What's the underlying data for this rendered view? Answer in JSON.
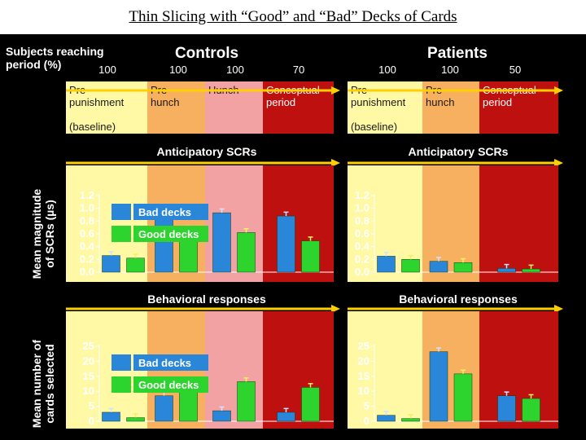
{
  "slide_title": "Thin Slicing with “Good” and “Bad” Decks of Cards",
  "figure": {
    "subjects_label_line1": "Subjects reaching",
    "subjects_label_line2": "period (%)",
    "groups": [
      {
        "name": "Controls",
        "percentages": [
          "100",
          "100",
          "100",
          "70"
        ],
        "periods": [
          {
            "lines": [
              "Pre-",
              "punishment",
              "",
              "(baseline)"
            ],
            "color": "#fff9a6"
          },
          {
            "lines": [
              "Pre-",
              "hunch"
            ],
            "color": "#f7b060"
          },
          {
            "lines": [
              "Hunch"
            ],
            "color": "#f2a2a2"
          },
          {
            "lines": [
              "Conceptual",
              "period"
            ],
            "color": "#bf1010"
          }
        ]
      },
      {
        "name": "Patients",
        "percentages": [
          "100",
          "100",
          "50"
        ],
        "periods": [
          {
            "lines": [
              "Pre-",
              "punishment",
              "",
              "(baseline)"
            ],
            "color": "#fff9a6"
          },
          {
            "lines": [
              "Pre-",
              "hunch"
            ],
            "color": "#f7b060"
          },
          {
            "lines": [
              "Conceptual",
              "period"
            ],
            "color": "#bf1010"
          }
        ]
      }
    ],
    "colors": {
      "bad": "#2a86d8",
      "good": "#2ed42e",
      "text": "#ffffff",
      "arrow": "#ffd000"
    }
  },
  "chart_data": [
    {
      "type": "bar",
      "title": "Anticipatory SCRs",
      "group": "Controls",
      "ylabel": "Mean magnitude of SCRs (µs)",
      "ylabel_lines": [
        "Mean magnitude",
        "of SCRs (µs)"
      ],
      "ylim": [
        0,
        1.2
      ],
      "yticks": [
        "0.0",
        "0.2",
        "0.4",
        "0.6",
        "0.8",
        "1.0",
        "1.2"
      ],
      "categories": [
        "Pre-punishment",
        "Pre-hunch",
        "Hunch",
        "Conceptual period"
      ],
      "series": [
        {
          "name": "Bad decks",
          "values": [
            0.26,
            0.84,
            0.93,
            0.88
          ]
        },
        {
          "name": "Good decks",
          "values": [
            0.22,
            0.66,
            0.62,
            0.49
          ]
        }
      ]
    },
    {
      "type": "bar",
      "title": "Anticipatory SCRs",
      "group": "Patients",
      "ylim": [
        0,
        1.2
      ],
      "yticks": [
        "0.0",
        "0.2",
        "0.4",
        "0.6",
        "0.8",
        "1.0",
        "1.2"
      ],
      "categories": [
        "Pre-punishment",
        "Pre-hunch",
        "Conceptual period"
      ],
      "series": [
        {
          "name": "Bad decks",
          "values": [
            0.25,
            0.17,
            0.06
          ]
        },
        {
          "name": "Good decks",
          "values": [
            0.2,
            0.15,
            0.05
          ]
        }
      ]
    },
    {
      "type": "bar",
      "title": "Behavioral responses",
      "group": "Controls",
      "ylabel": "Mean number of cards selected",
      "ylabel_lines": [
        "Mean number of",
        "cards selected"
      ],
      "ylim": [
        0,
        25
      ],
      "yticks": [
        "0",
        "5",
        "10",
        "15",
        "20",
        "25"
      ],
      "categories": [
        "Pre-punishment",
        "Pre-hunch",
        "Hunch",
        "Conceptual period"
      ],
      "series": [
        {
          "name": "Bad decks",
          "values": [
            3,
            8.5,
            3.5,
            3
          ]
        },
        {
          "name": "Good decks",
          "values": [
            1.2,
            10.5,
            13.2,
            11.3
          ]
        }
      ]
    },
    {
      "type": "bar",
      "title": "Behavioral responses",
      "group": "Patients",
      "ylim": [
        0,
        25
      ],
      "yticks": [
        "0",
        "5",
        "10",
        "15",
        "20",
        "25"
      ],
      "categories": [
        "Pre-punishment",
        "Pre-hunch",
        "Conceptual period"
      ],
      "series": [
        {
          "name": "Bad decks",
          "values": [
            2,
            23.2,
            8.5
          ]
        },
        {
          "name": "Good decks",
          "values": [
            0.9,
            15.8,
            7.6
          ]
        }
      ]
    }
  ]
}
